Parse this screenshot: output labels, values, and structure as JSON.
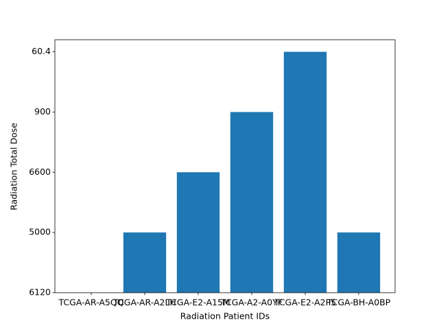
{
  "chart_data": {
    "type": "bar",
    "xlabel": "Radiation Patient IDs",
    "ylabel": "Radiation Total Dose",
    "categories": [
      "TCGA-AR-A5QQ",
      "TCGA-AR-A2LH",
      "TCGA-E2-A15M",
      "TCGA-A2-A0YF",
      "TCGA-E2-A2P5",
      "TCGA-BH-A0BP"
    ],
    "values": [
      0,
      1,
      2,
      3,
      4,
      1
    ],
    "color": "#1f77b4",
    "ylim": [
      0,
      4.2
    ],
    "yticks": [
      {
        "value": 0,
        "label": "6120"
      },
      {
        "value": 1,
        "label": "5000"
      },
      {
        "value": 2,
        "label": "6600"
      },
      {
        "value": 3,
        "label": "900"
      },
      {
        "value": 4,
        "label": "60.4"
      }
    ],
    "grid": false
  }
}
